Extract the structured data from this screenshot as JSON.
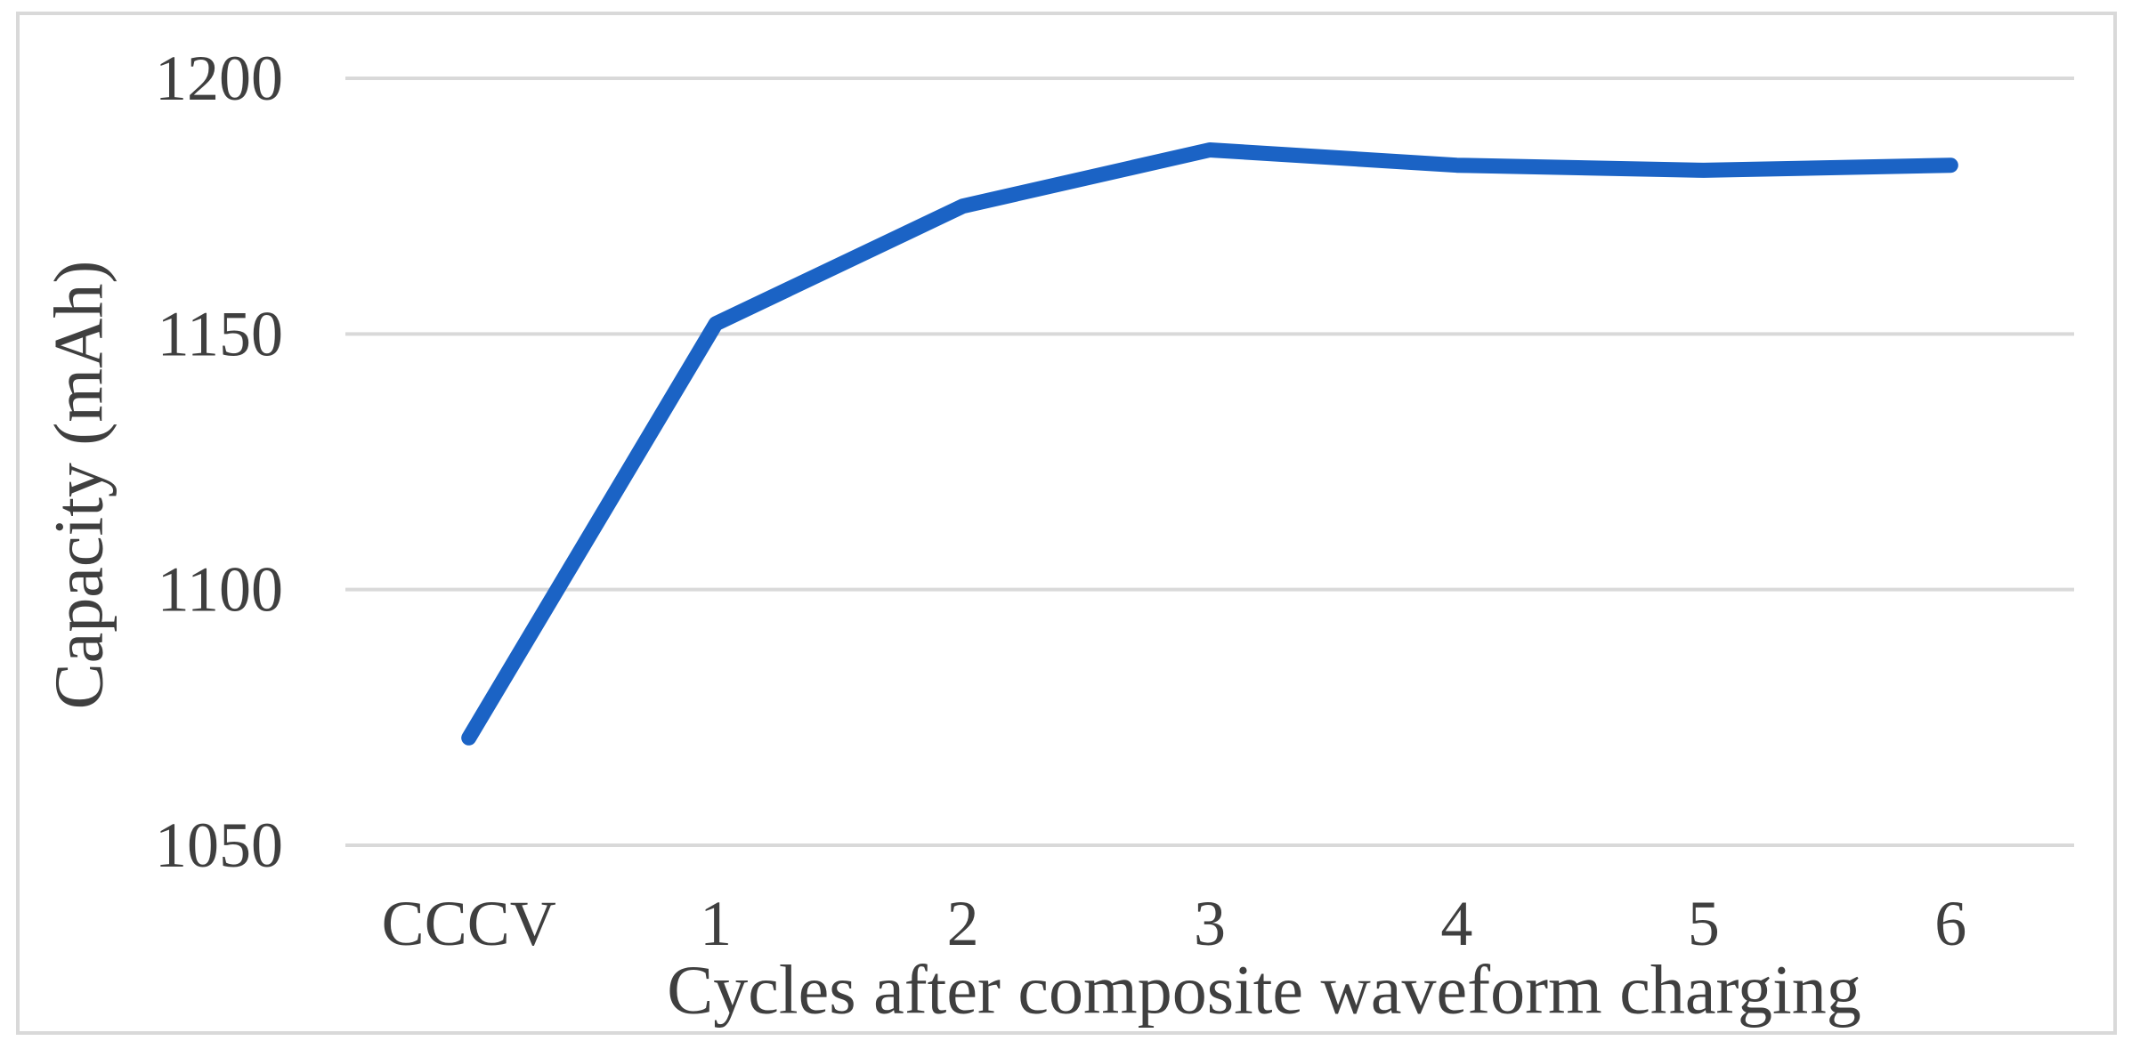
{
  "figure": {
    "background": "#ffffff",
    "frame_color": "#d9d9d9"
  },
  "chart_data": {
    "type": "line",
    "title": "",
    "categories": [
      "CCCV",
      "1",
      "2",
      "3",
      "4",
      "5",
      "6"
    ],
    "values": [
      1071,
      1152,
      1175,
      1186,
      1183,
      1182,
      1183
    ],
    "xlabel": "Cycles after composite waveform charging",
    "ylabel": "Capacity (mAh)",
    "ylim": [
      1050,
      1200
    ],
    "yticks": [
      1050,
      1100,
      1150,
      1200
    ],
    "grid": true,
    "legend": "none",
    "colors": {
      "line": "#1b63c5",
      "gridline": "#d9d9d9",
      "frame": "#d9d9d9",
      "text": "#3f3f3f",
      "background": "#ffffff"
    }
  }
}
